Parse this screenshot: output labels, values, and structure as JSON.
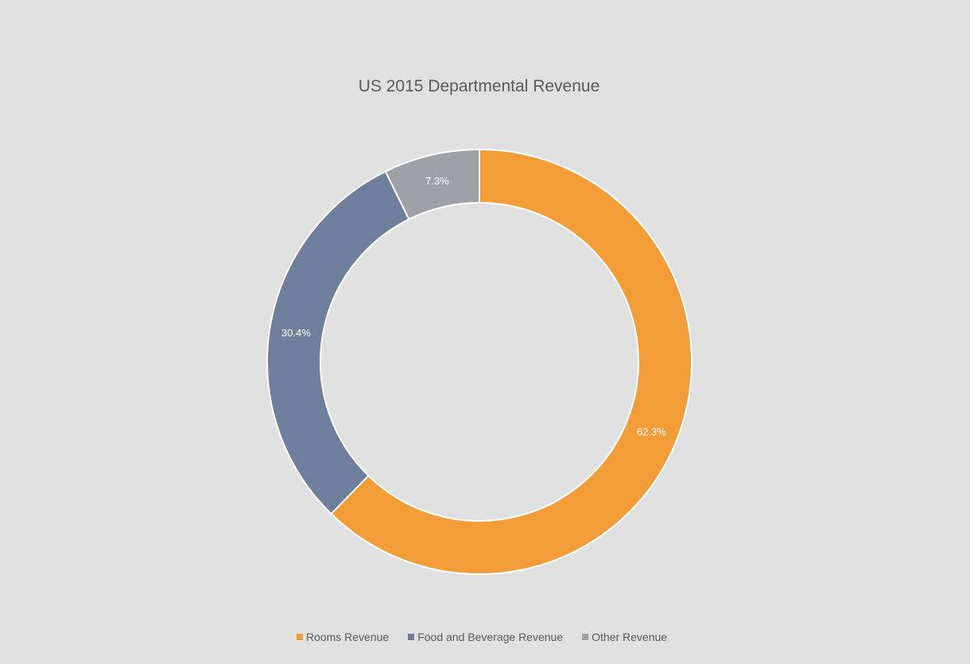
{
  "chart_data": {
    "type": "pie",
    "variant": "donut",
    "title": "US 2015 Departmental Revenue",
    "categories": [
      "Rooms Revenue",
      "Food and Beverage Revenue",
      "Other Revenue"
    ],
    "values": [
      62.3,
      30.4,
      7.3
    ],
    "data_labels": [
      "62.3%",
      "30.4%",
      "7.3%"
    ],
    "colors": [
      "#f29d38",
      "#6f7e9a",
      "#9ea2a5"
    ],
    "legend_position": "bottom",
    "background": "#e0e0e0"
  }
}
